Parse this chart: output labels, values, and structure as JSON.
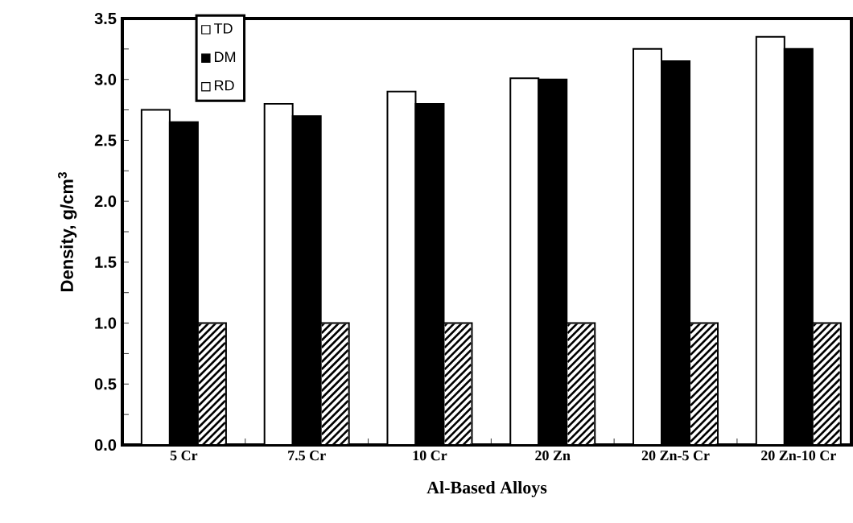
{
  "chart_data": {
    "type": "bar",
    "xlabel": "Al-Based Alloys",
    "ylabel": "Density, g/cm$^{3}$",
    "categories": [
      "5 Cr",
      "7.5 Cr",
      "10 Cr",
      "20 Zn",
      "20 Zn-5 Cr",
      "20 Zn-10 Cr"
    ],
    "series": [
      {
        "name": "TD",
        "color": "#ffffff",
        "values": [
          2.75,
          2.8,
          2.9,
          3.01,
          3.25,
          3.35
        ]
      },
      {
        "name": "DM",
        "color": "#000000",
        "values": [
          2.65,
          2.7,
          2.8,
          3.0,
          3.15,
          3.25
        ]
      },
      {
        "name": "RD",
        "color": "#000000",
        "values": [
          1.0,
          1.0,
          1.0,
          1.0,
          1.0,
          1.0
        ]
      }
    ],
    "ylim": [
      0,
      3.5
    ],
    "yticks": [
      {
        "value": 0,
        "label": "0.0"
      },
      0.5,
      {
        "value": 1,
        "label": "1.0"
      },
      1.5,
      {
        "value": 2,
        "label": "2.0"
      },
      2.5,
      {
        "value": 3,
        "label": "3.0"
      },
      3.5
    ],
    "legend": "top left"
  }
}
